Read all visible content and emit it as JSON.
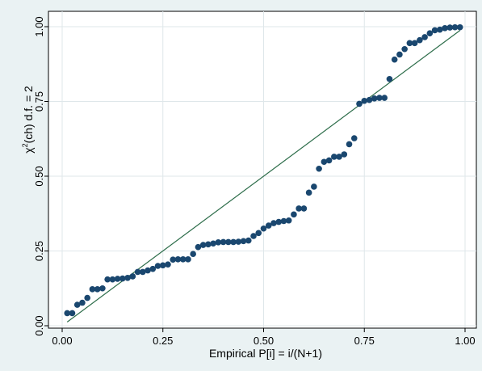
{
  "chart_data": {
    "type": "scatter",
    "xlabel": "Empirical P[i] = i/(N+1)",
    "ylabel_parts": {
      "pre": "χ",
      "sup": "2",
      "post": "(ch) d.f. = 2"
    },
    "xlim": [
      0,
      1
    ],
    "ylim": [
      0,
      1
    ],
    "xticks": [
      "0.00",
      "0.25",
      "0.50",
      "0.75",
      "1.00"
    ],
    "yticks": [
      "0.00",
      "0.25",
      "0.50",
      "0.75",
      "1.00"
    ],
    "grid": true,
    "reference_line": {
      "x": [
        0.0125,
        0.9875
      ],
      "y": [
        0.0125,
        0.9875
      ]
    },
    "colors": {
      "background": "#eaf2f3",
      "plot_area": "#ffffff",
      "marker": "#1a476f",
      "line": "#2d6d4a",
      "grid": "#dfe7ea"
    },
    "series": [
      {
        "x": [
          0.0125,
          0.025,
          0.0375,
          0.05,
          0.0625,
          0.075,
          0.0875,
          0.1,
          0.1125,
          0.125,
          0.1375,
          0.15,
          0.1625,
          0.175,
          0.1875,
          0.2,
          0.2125,
          0.225,
          0.2375,
          0.25,
          0.2625,
          0.275,
          0.2875,
          0.3,
          0.3125,
          0.325,
          0.3375,
          0.35,
          0.3625,
          0.375,
          0.3875,
          0.4,
          0.4125,
          0.425,
          0.4375,
          0.45,
          0.4625,
          0.475,
          0.4875,
          0.5,
          0.5125,
          0.525,
          0.5375,
          0.55,
          0.5625,
          0.575,
          0.5875,
          0.6,
          0.6125,
          0.625,
          0.6375,
          0.65,
          0.6625,
          0.675,
          0.6875,
          0.7,
          0.7125,
          0.725,
          0.7375,
          0.75,
          0.7625,
          0.775,
          0.7875,
          0.8,
          0.8125,
          0.825,
          0.8375,
          0.85,
          0.8625,
          0.875,
          0.8875,
          0.9,
          0.9125,
          0.925,
          0.9375,
          0.95,
          0.9625,
          0.975,
          0.9875
        ],
        "y": [
          0.042,
          0.042,
          0.07,
          0.077,
          0.093,
          0.122,
          0.122,
          0.125,
          0.155,
          0.155,
          0.157,
          0.158,
          0.16,
          0.165,
          0.18,
          0.18,
          0.185,
          0.19,
          0.2,
          0.202,
          0.205,
          0.221,
          0.222,
          0.222,
          0.222,
          0.24,
          0.263,
          0.27,
          0.272,
          0.275,
          0.279,
          0.28,
          0.28,
          0.28,
          0.281,
          0.283,
          0.285,
          0.3,
          0.31,
          0.325,
          0.335,
          0.343,
          0.347,
          0.35,
          0.352,
          0.372,
          0.392,
          0.392,
          0.445,
          0.465,
          0.525,
          0.548,
          0.553,
          0.565,
          0.565,
          0.573,
          0.607,
          0.627,
          0.742,
          0.752,
          0.755,
          0.76,
          0.762,
          0.762,
          0.825,
          0.89,
          0.907,
          0.925,
          0.945,
          0.945,
          0.955,
          0.965,
          0.978,
          0.988,
          0.99,
          0.995,
          0.997,
          0.998,
          0.998
        ]
      }
    ]
  }
}
